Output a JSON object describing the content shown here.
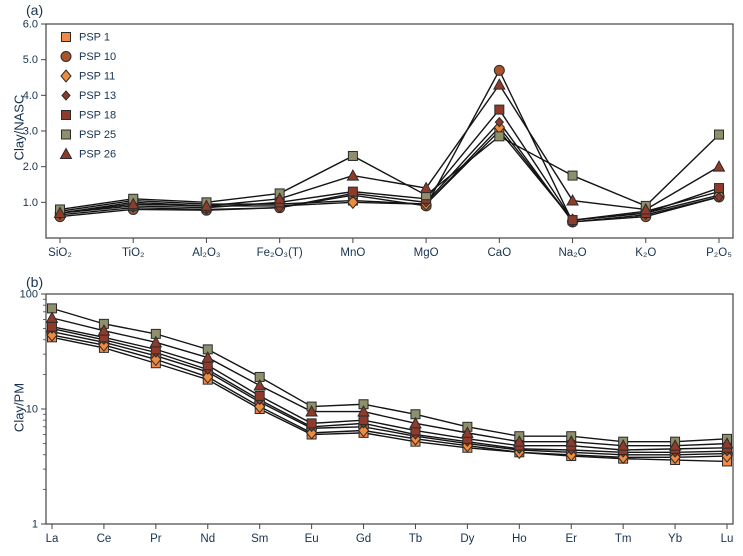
{
  "figure": {
    "panel_a_label": "(a)",
    "panel_b_label": "(b)"
  },
  "colors": {
    "line": "#141414",
    "axis": "#444444",
    "axis_text": "#16324f",
    "orange": "#F08A4B",
    "brown": "#A9542A",
    "dark_red": "#8E3B2B",
    "olive": "#8F8F6B"
  },
  "series_styles": [
    {
      "name": "PSP 1",
      "marker": "square",
      "fill": "#F08A4B"
    },
    {
      "name": "PSP 10",
      "marker": "circle",
      "fill": "#A9542A"
    },
    {
      "name": "PSP 11",
      "marker": "diamond",
      "fill": "#ED8B3E"
    },
    {
      "name": "PSP 13",
      "marker": "diamond-small",
      "fill": "#8E3B2B"
    },
    {
      "name": "PSP 18",
      "marker": "square",
      "fill": "#8E3B2B"
    },
    {
      "name": "PSP 25",
      "marker": "square",
      "fill": "#8F8F6B"
    },
    {
      "name": "PSP 26",
      "marker": "triangle",
      "fill": "#8E3B2B"
    }
  ],
  "chart_data": [
    {
      "type": "line",
      "ylabel": "Clay/NASC",
      "xlabel": "",
      "yscale": "linear",
      "ylim": [
        0,
        6
      ],
      "yticks": [
        1,
        2,
        3,
        4,
        5,
        6
      ],
      "ytick_labels": [
        "1.0",
        "2.0",
        "3.0",
        "4.0",
        "5.0",
        "6.0"
      ],
      "grid": false,
      "legend_position": "top-left",
      "categories": [
        "SiO₂",
        "TiO₂",
        "Al₂O₃",
        "Fe₂O₃(T)",
        "MnO",
        "MgO",
        "CaO",
        "Na₂O",
        "K₂O",
        "P₂O₅"
      ],
      "series": [
        {
          "name": "PSP 1",
          "values": [
            0.75,
            1.05,
            0.95,
            0.95,
            1.05,
            0.95,
            3.0,
            0.5,
            0.75,
            1.3
          ]
        },
        {
          "name": "PSP 10",
          "values": [
            0.6,
            0.8,
            0.78,
            0.85,
            1.2,
            0.9,
            4.7,
            0.45,
            0.6,
            1.15
          ]
        },
        {
          "name": "PSP 11",
          "values": [
            0.7,
            1.0,
            0.9,
            0.9,
            1.0,
            0.95,
            3.1,
            0.5,
            0.7,
            1.2
          ]
        },
        {
          "name": "PSP 13",
          "values": [
            0.65,
            0.85,
            0.8,
            0.85,
            1.25,
            1.0,
            3.25,
            0.45,
            0.65,
            1.15
          ]
        },
        {
          "name": "PSP 18",
          "values": [
            0.7,
            0.9,
            0.85,
            1.0,
            1.3,
            1.1,
            3.6,
            0.5,
            0.7,
            1.4
          ]
        },
        {
          "name": "PSP 25",
          "values": [
            0.8,
            1.1,
            1.0,
            1.25,
            2.3,
            1.2,
            2.85,
            1.75,
            0.9,
            2.9
          ]
        },
        {
          "name": "PSP 26",
          "values": [
            0.7,
            0.95,
            0.9,
            1.1,
            1.75,
            1.4,
            4.3,
            1.05,
            0.8,
            2.0
          ]
        }
      ]
    },
    {
      "type": "line",
      "ylabel": "Clay/PM",
      "xlabel": "",
      "yscale": "log",
      "ylim": [
        1,
        100
      ],
      "yticks": [
        1,
        10,
        100
      ],
      "ytick_labels": [
        "1",
        "10",
        "100"
      ],
      "grid": false,
      "legend_position": "none",
      "categories": [
        "La",
        "Ce",
        "Pr",
        "Nd",
        "Sm",
        "Eu",
        "Gd",
        "Tb",
        "Dy",
        "Ho",
        "Er",
        "Tm",
        "Yb",
        "Lu"
      ],
      "series": [
        {
          "name": "PSP 1",
          "values": [
            42,
            34,
            25,
            18,
            10.0,
            6.0,
            6.2,
            5.2,
            4.6,
            4.2,
            3.9,
            3.7,
            3.6,
            3.5
          ]
        },
        {
          "name": "PSP 10",
          "values": [
            47,
            38,
            29,
            21,
            11.5,
            6.8,
            7.0,
            5.8,
            5.0,
            4.4,
            4.2,
            4.0,
            4.0,
            4.1
          ]
        },
        {
          "name": "PSP 11",
          "values": [
            44,
            36,
            27,
            19,
            10.5,
            6.2,
            6.5,
            5.5,
            4.8,
            4.2,
            4.0,
            3.8,
            3.8,
            3.9
          ]
        },
        {
          "name": "PSP 13",
          "values": [
            50,
            40,
            31,
            22,
            12.0,
            7.0,
            7.5,
            6.0,
            5.2,
            4.5,
            4.4,
            4.2,
            4.2,
            4.3
          ]
        },
        {
          "name": "PSP 18",
          "values": [
            52,
            42,
            33,
            24,
            13.0,
            7.5,
            8.0,
            6.5,
            5.5,
            4.8,
            4.8,
            4.4,
            4.5,
            4.6
          ]
        },
        {
          "name": "PSP 25",
          "values": [
            75,
            55,
            45,
            33,
            19.0,
            10.5,
            11.0,
            9.0,
            7.0,
            5.8,
            5.8,
            5.2,
            5.2,
            5.5
          ]
        },
        {
          "name": "PSP 26",
          "values": [
            62,
            48,
            38,
            28,
            16.0,
            9.5,
            9.5,
            7.5,
            6.2,
            5.2,
            5.2,
            4.8,
            4.8,
            5.0
          ]
        }
      ]
    }
  ]
}
